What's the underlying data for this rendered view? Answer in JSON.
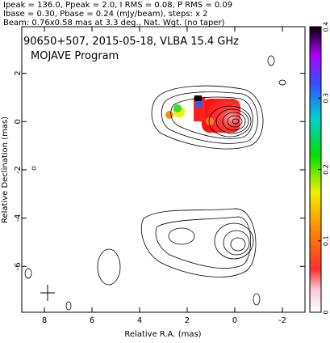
{
  "chart_data": {
    "type": "contour-map",
    "header_lines": [
      "Ipeak = 136.0, Ppeak = 2.0, I RMS = 0.08, P RMS = 0.09",
      "Ibase = 0.30, Pbase = 0.24 (mJy/beam), steps: x 2",
      "Beam: 0.76x0.58 mas at 3.3 deg., Nat. Wgt. (no taper)"
    ],
    "title": "90650+507, 2015-05-18, VLBA 15.4 GHz",
    "subtitle": "MOJAVE Program",
    "x_label": "Relative R.A. (mas)",
    "y_label": "Relative Declination (mas)",
    "xlim": [
      8.95,
      -2.95
    ],
    "xticks": [
      8,
      6,
      4,
      2,
      0,
      -2
    ],
    "ylim": [
      -7.9,
      3.93
    ],
    "yticks": [
      2,
      0,
      -2,
      -4,
      -6
    ],
    "colorbar_lim": [
      0,
      0.4
    ],
    "colorbar_ticks": [
      0,
      0.1,
      0.2,
      0.3,
      0.4
    ]
  }
}
